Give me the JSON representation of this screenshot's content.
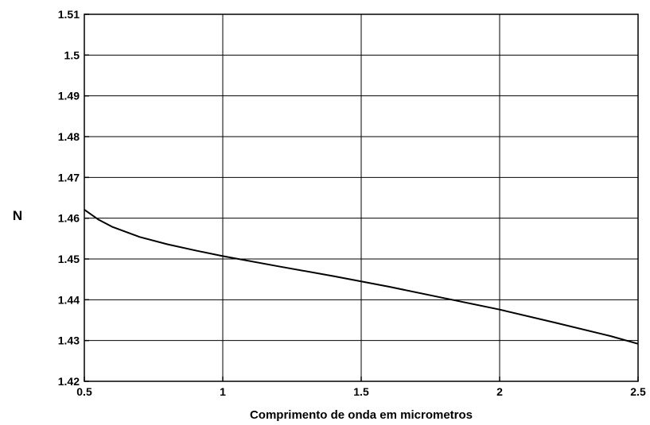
{
  "chart_data": {
    "type": "line",
    "title": "",
    "xlabel": "Comprimento de onda em micrometros",
    "ylabel": "N",
    "xlim": [
      0.5,
      2.5
    ],
    "ylim": [
      1.42,
      1.51
    ],
    "xticks": [
      0.5,
      1,
      1.5,
      2,
      2.5
    ],
    "xtick_labels": [
      "0.5",
      "1",
      "1.5",
      "2",
      "2.5"
    ],
    "yticks": [
      1.42,
      1.43,
      1.44,
      1.45,
      1.46,
      1.47,
      1.48,
      1.49,
      1.5,
      1.51
    ],
    "ytick_labels": [
      "1.42",
      "1.43",
      "1.44",
      "1.45",
      "1.46",
      "1.47",
      "1.48",
      "1.49",
      "1.5",
      "1.51"
    ],
    "grid": true,
    "series": [
      {
        "color": "#000000",
        "x": [
          0.5,
          0.55,
          0.6,
          0.7,
          0.8,
          0.9,
          1.0,
          1.2,
          1.4,
          1.6,
          1.8,
          2.0,
          2.2,
          2.4,
          2.5
        ],
        "y": [
          1.4621,
          1.4597,
          1.4579,
          1.4554,
          1.4536,
          1.4521,
          1.4507,
          1.4482,
          1.4458,
          1.4432,
          1.4404,
          1.4376,
          1.4344,
          1.4311,
          1.4292
        ]
      }
    ]
  }
}
